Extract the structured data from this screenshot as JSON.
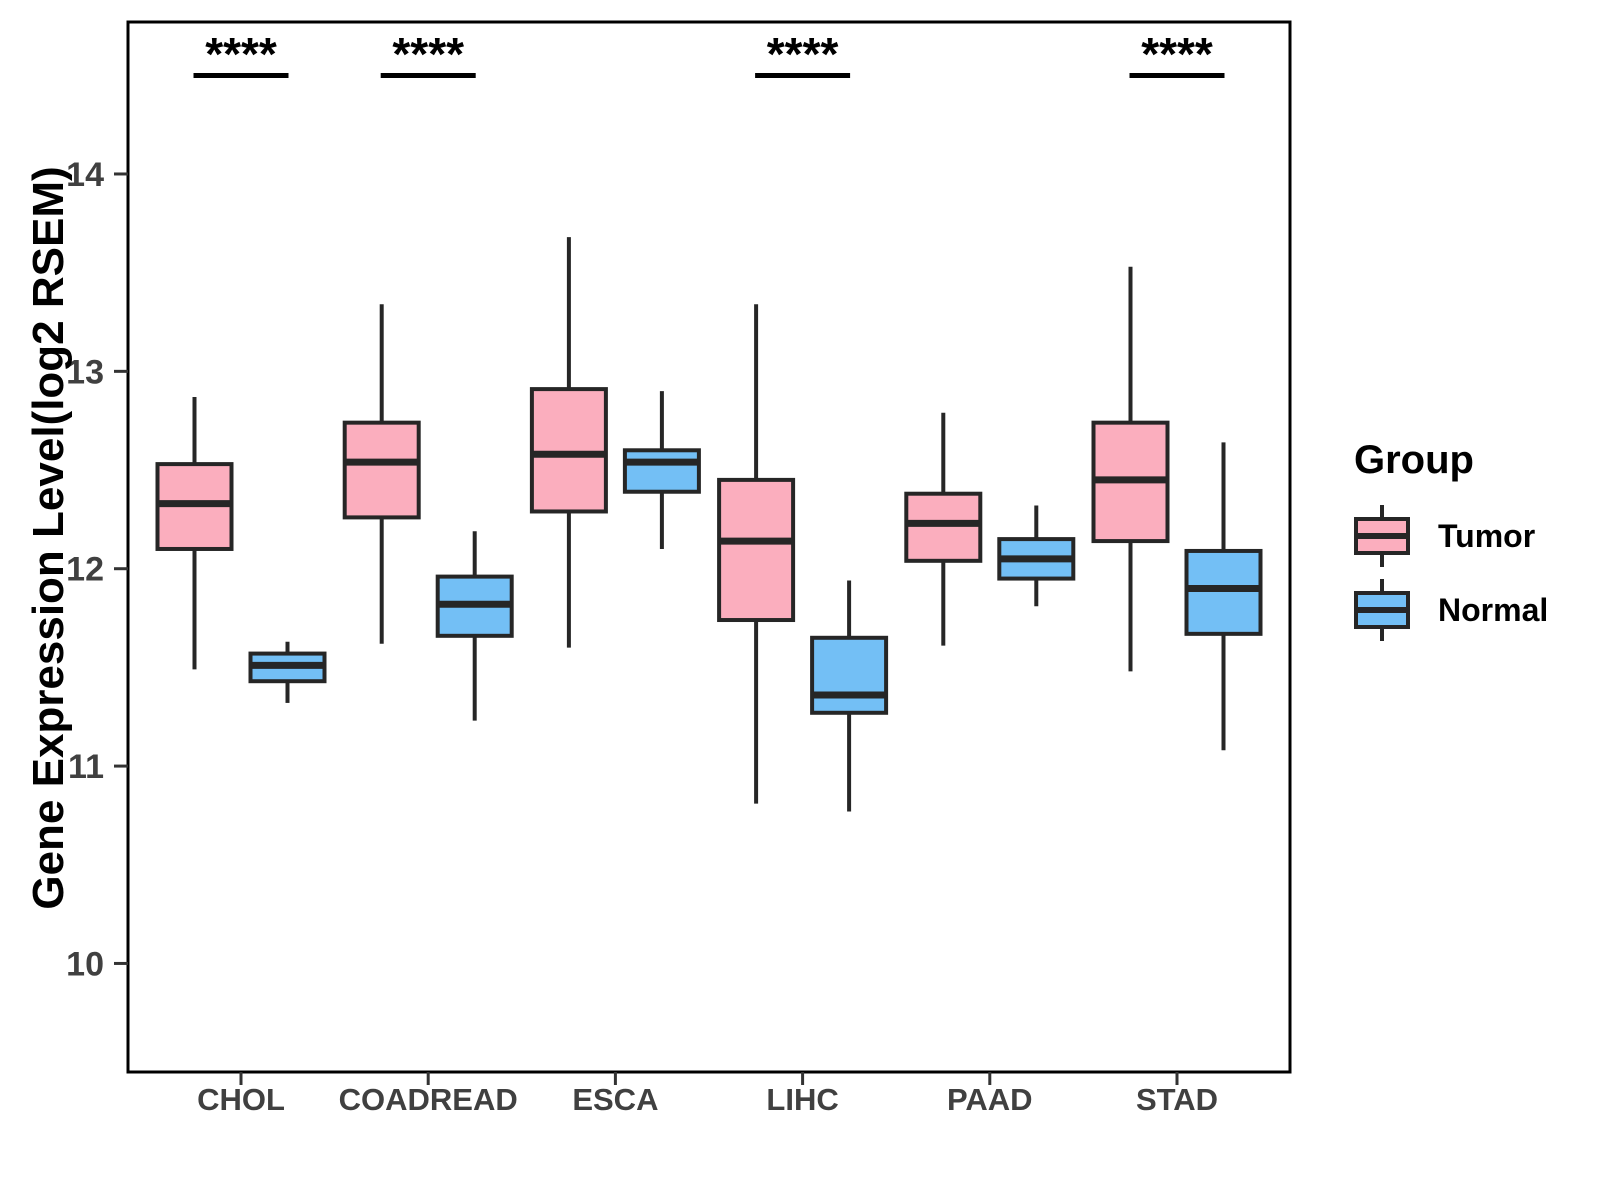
{
  "chart_data": {
    "type": "boxplot",
    "title": "",
    "xlabel": "",
    "ylabel": "Gene Expression Level(log2 RSEM)",
    "yticks": [
      10,
      11,
      12,
      13,
      14
    ],
    "ylim": [
      9.45,
      14.77
    ],
    "grid": "off",
    "legend_position": "right",
    "categories": [
      "CHOL",
      "COADREAD",
      "ESCA",
      "LIHC",
      "PAAD",
      "STAD"
    ],
    "significance": [
      {
        "category": "CHOL",
        "label": "****"
      },
      {
        "category": "COADREAD",
        "label": "****"
      },
      {
        "category": "LIHC",
        "label": "****"
      },
      {
        "category": "STAD",
        "label": "****"
      }
    ],
    "series": [
      {
        "name": "Tumor",
        "color": "#FBAEBE",
        "boxes": [
          {
            "category": "CHOL",
            "whisker_low": 11.49,
            "q1": 12.1,
            "median": 12.33,
            "q3": 12.53,
            "whisker_high": 12.87
          },
          {
            "category": "COADREAD",
            "whisker_low": 11.62,
            "q1": 12.26,
            "median": 12.54,
            "q3": 12.74,
            "whisker_high": 13.34
          },
          {
            "category": "ESCA",
            "whisker_low": 11.6,
            "q1": 12.29,
            "median": 12.58,
            "q3": 12.91,
            "whisker_high": 13.68
          },
          {
            "category": "LIHC",
            "whisker_low": 10.81,
            "q1": 11.74,
            "median": 12.14,
            "q3": 12.45,
            "whisker_high": 13.34
          },
          {
            "category": "PAAD",
            "whisker_low": 11.61,
            "q1": 12.04,
            "median": 12.23,
            "q3": 12.38,
            "whisker_high": 12.79
          },
          {
            "category": "STAD",
            "whisker_low": 11.48,
            "q1": 12.14,
            "median": 12.45,
            "q3": 12.74,
            "whisker_high": 13.53
          }
        ]
      },
      {
        "name": "Normal",
        "color": "#73BFF5",
        "boxes": [
          {
            "category": "CHOL",
            "whisker_low": 11.32,
            "q1": 11.43,
            "median": 11.51,
            "q3": 11.57,
            "whisker_high": 11.63
          },
          {
            "category": "COADREAD",
            "whisker_low": 11.23,
            "q1": 11.66,
            "median": 11.82,
            "q3": 11.96,
            "whisker_high": 12.19
          },
          {
            "category": "ESCA",
            "whisker_low": 12.1,
            "q1": 12.39,
            "median": 12.54,
            "q3": 12.6,
            "whisker_high": 12.9
          },
          {
            "category": "LIHC",
            "whisker_low": 10.77,
            "q1": 11.27,
            "median": 11.36,
            "q3": 11.65,
            "whisker_high": 11.94
          },
          {
            "category": "PAAD",
            "whisker_low": 11.81,
            "q1": 11.95,
            "median": 12.05,
            "q3": 12.15,
            "whisker_high": 12.32
          },
          {
            "category": "STAD",
            "whisker_low": 11.08,
            "q1": 11.67,
            "median": 11.9,
            "q3": 12.09,
            "whisker_high": 12.64
          }
        ]
      }
    ]
  },
  "legend": {
    "title": "Group",
    "items": [
      {
        "label": "Tumor",
        "color": "#FBAEBE"
      },
      {
        "label": "Normal",
        "color": "#73BFF5"
      }
    ]
  },
  "colors": {
    "box_border": "#262626",
    "panel_border": "#000000",
    "tick_label": "#404040",
    "significance": "#000000"
  }
}
